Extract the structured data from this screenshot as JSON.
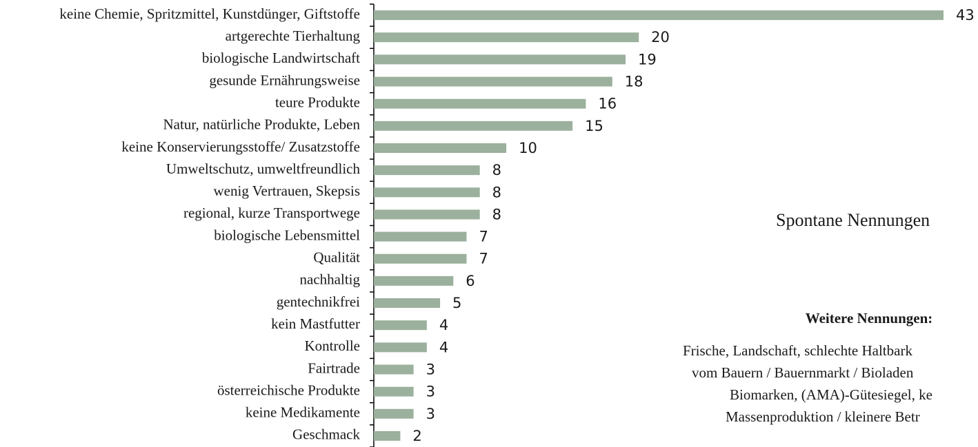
{
  "chart_data": {
    "type": "barh",
    "categories": [
      "keine Chemie, Spritzmittel, Kunstdünger, Giftstoffe",
      "artgerechte Tierhaltung",
      "biologische Landwirtschaft",
      "gesunde Ernährungsweise",
      "teure Produkte",
      "Natur, natürliche Produkte, Leben",
      "keine Konservierungsstoffe/ Zusatzstoffe",
      "Umweltschutz, umweltfreundlich",
      "wenig Vertrauen, Skepsis",
      "regional, kurze Transportwege",
      "biologische Lebensmittel",
      "Qualität",
      "nachhaltig",
      "gentechnikfrei",
      "kein Mastfutter",
      "Kontrolle",
      "Fairtrade",
      "österreichische Produkte",
      "keine Medikamente",
      "Geschmack"
    ],
    "series": [
      {
        "name": "Spontane Nennungen",
        "color": "#9bb09d",
        "values": [
          43,
          20,
          19,
          18,
          16,
          15,
          10,
          8,
          8,
          8,
          7,
          7,
          6,
          5,
          4,
          4,
          3,
          3,
          3,
          2
        ]
      }
    ],
    "annotations": {
      "heading": "Weitere Nennungen:",
      "lines": [
        "Frische, Landschaft, schlechte Haltbark",
        "vom Bauern / Bauernmarkt / Bioladen",
        "Biomarken, (AMA)-Gütesiegel, ke",
        "Massenproduktion / kleinere Betr"
      ]
    }
  }
}
